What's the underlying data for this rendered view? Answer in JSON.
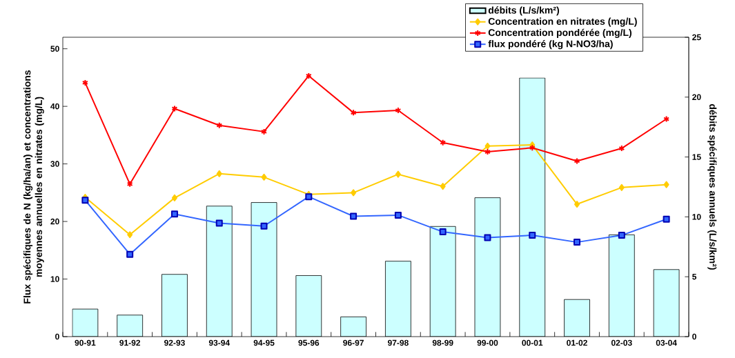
{
  "chart_data": {
    "type": "bar",
    "categories": [
      "90-91",
      "91-92",
      "92-93",
      "93-94",
      "94-95",
      "95-96",
      "96-97",
      "97-98",
      "98-99",
      "99-00",
      "00-01",
      "01-02",
      "02-03",
      "03-04"
    ],
    "ylabel": "Flux spécifiques de N (kg/ha/an) et concentrations moyennes annuelles en nitrates (mg/L)",
    "y2label": "débits spécifiques annuels (L/s/km²)",
    "ylim": [
      0,
      52
    ],
    "yticks": [
      0,
      10,
      20,
      30,
      40,
      50
    ],
    "y2lim": [
      0,
      25
    ],
    "y2ticks": [
      0,
      5,
      10,
      15,
      20,
      25
    ],
    "legend": "top right",
    "series": [
      {
        "name": "débits (L/s/km²)",
        "axis": "y2",
        "color": "#ccffff",
        "values": [
          2.3,
          1.8,
          5.2,
          10.9,
          11.2,
          5.1,
          1.65,
          6.3,
          9.2,
          11.6,
          21.6,
          3.1,
          8.5,
          5.6
        ]
      },
      {
        "name": "Concentration en nitrates (mg/L)",
        "type": "line",
        "marker": "diamond",
        "color": "#ffcc00",
        "values": [
          24.2,
          17.7,
          24.1,
          28.3,
          27.7,
          24.7,
          25.0,
          28.2,
          26.1,
          33.1,
          33.3,
          23.0,
          25.9,
          26.4
        ]
      },
      {
        "name": "Concentration pondérée (mg/L)",
        "type": "line",
        "marker": "cross",
        "color": "#ff0000",
        "values": [
          44.1,
          26.5,
          39.6,
          36.7,
          35.6,
          45.3,
          38.9,
          39.3,
          33.7,
          32.1,
          32.8,
          30.5,
          32.7,
          37.8
        ]
      },
      {
        "name": "flux pondéré (kg N-NO3/ha)",
        "type": "line",
        "marker": "square",
        "color": "#3366ff",
        "values": [
          23.7,
          14.3,
          21.3,
          19.7,
          19.2,
          24.3,
          20.9,
          21.1,
          18.2,
          17.2,
          17.6,
          16.4,
          17.6,
          20.4
        ]
      }
    ]
  }
}
